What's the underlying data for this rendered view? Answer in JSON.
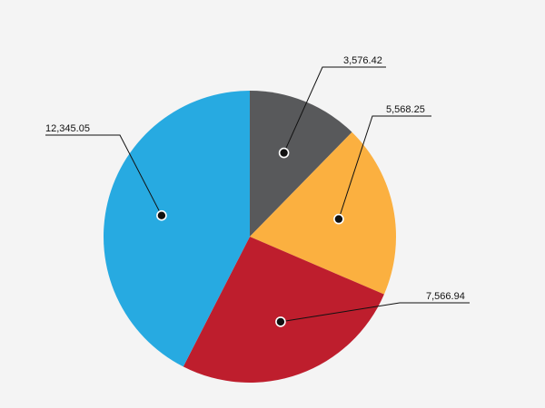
{
  "chart_data": {
    "type": "pie",
    "start_angle_deg": 0,
    "direction": "clockwise",
    "slices": [
      {
        "value": 3576.42,
        "label": "3,576.42",
        "color": "#58595b"
      },
      {
        "value": 5568.25,
        "label": "5,568.25",
        "color": "#fbb040"
      },
      {
        "value": 7566.94,
        "label": "7,566.94",
        "color": "#be1e2d"
      },
      {
        "value": 12345.05,
        "label": "12,345.05",
        "color": "#27aae1"
      }
    ]
  }
}
